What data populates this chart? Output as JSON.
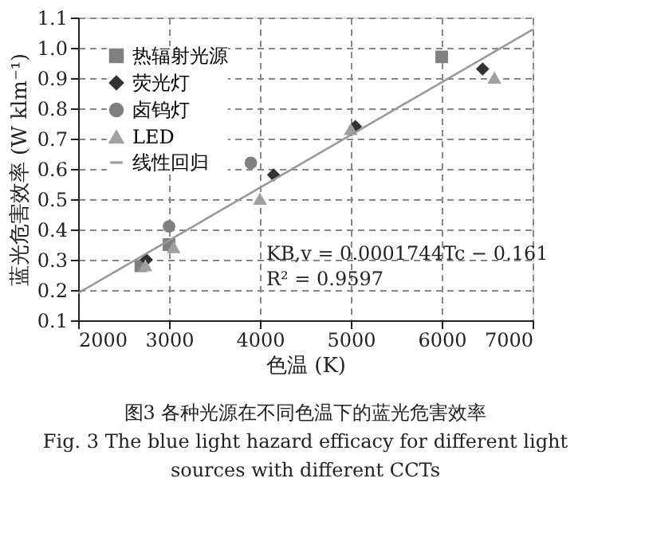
{
  "chart_data": {
    "type": "scatter",
    "xlabel": "色温 (K)",
    "ylabel": "蓝光危害效率 (W klm⁻¹)",
    "xlim": [
      2000,
      7000
    ],
    "xticks": [
      2000,
      3000,
      4000,
      5000,
      6000,
      7000
    ],
    "ylim": [
      0.1,
      1.1
    ],
    "yticks": [
      0.1,
      0.2,
      0.3,
      0.4,
      0.5,
      0.6,
      0.7,
      0.8,
      0.9,
      {
        "value": 1,
        "label": "1.0"
      },
      1.1
    ],
    "grid": true,
    "legend": "top left",
    "series": [
      {
        "name": "热辐射光源",
        "marker": "square",
        "color": "#808080",
        "x": [
          2690,
          3000,
          6000
        ],
        "values": [
          0.28,
          0.35,
          0.97
        ]
      },
      {
        "name": "荧光灯",
        "marker": "diamond",
        "color": "#333333",
        "x": [
          2750,
          4150,
          5050,
          6450
        ],
        "values": [
          0.3,
          0.58,
          0.74,
          0.93
        ]
      },
      {
        "name": "卤钨灯",
        "marker": "circle",
        "color": "#808080",
        "x": [
          3000,
          3900
        ],
        "values": [
          0.41,
          0.62
        ]
      },
      {
        "name": "LED",
        "marker": "triangle",
        "color": "#a0a0a0",
        "x": [
          2740,
          3050,
          4000,
          5000,
          6580
        ],
        "values": [
          0.28,
          0.34,
          0.5,
          0.73,
          0.9
        ]
      },
      {
        "name": "线性回归",
        "type": "line",
        "line_style": "solid",
        "color": "#999999",
        "x": [
          2000,
          7000
        ],
        "values": [
          0.19,
          1.06
        ]
      }
    ],
    "annotations": [
      "KB,v = 0.0001744Tc − 0.161",
      "R² = 0.9597",
      "图3  各种光源在不同色温下的蓝光危害效率",
      "Fig. 3  The blue light hazard efficacy for different light sources with different CCTs"
    ]
  }
}
